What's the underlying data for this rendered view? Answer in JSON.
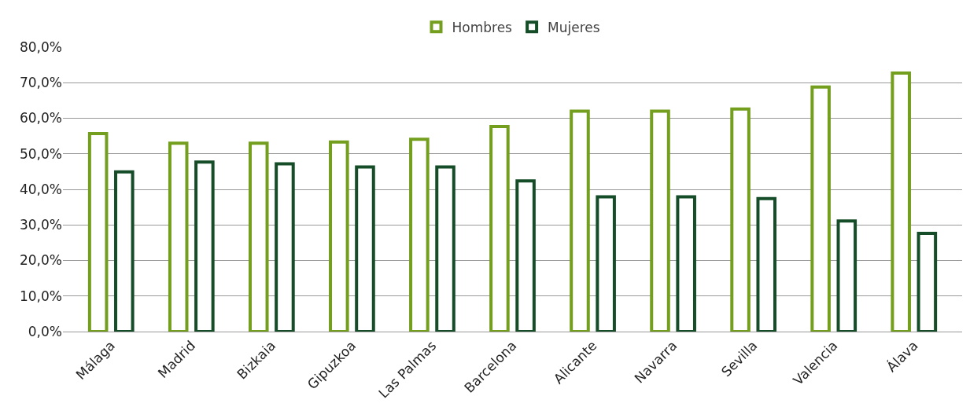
{
  "chart_data": {
    "type": "bar",
    "categories": [
      "Málaga",
      "Madrid",
      "Bizkaia",
      "Gipuzkoa",
      "Las Palmas",
      "Barcelona",
      "Alicante",
      "Navarra",
      "Sevilla",
      "Valencia",
      "Álava"
    ],
    "series": [
      {
        "name": "Hombres",
        "color": "#739e1e",
        "values": [
          55.7,
          53.0,
          53.0,
          53.3,
          54.1,
          57.7,
          62.0,
          62.0,
          62.6,
          68.8,
          72.7
        ]
      },
      {
        "name": "Mujeres",
        "color": "#144d28",
        "values": [
          44.9,
          47.7,
          47.2,
          46.3,
          46.3,
          42.4,
          37.9,
          37.9,
          37.4,
          31.1,
          27.6
        ]
      }
    ],
    "ylim": [
      0,
      80
    ],
    "yticks": [
      {
        "value": 0,
        "label": "0,0%"
      },
      {
        "value": 10,
        "label": "10,0%"
      },
      {
        "value": 20,
        "label": "20,0%"
      },
      {
        "value": 30,
        "label": "30,0%"
      },
      {
        "value": 40,
        "label": "40,0%"
      },
      {
        "value": 50,
        "label": "50,0%"
      },
      {
        "value": 60,
        "label": "60,0%"
      },
      {
        "value": 70,
        "label": "70,0%"
      },
      {
        "value": 80,
        "label": "80,0%"
      }
    ],
    "grid": "y",
    "legend": "top"
  }
}
